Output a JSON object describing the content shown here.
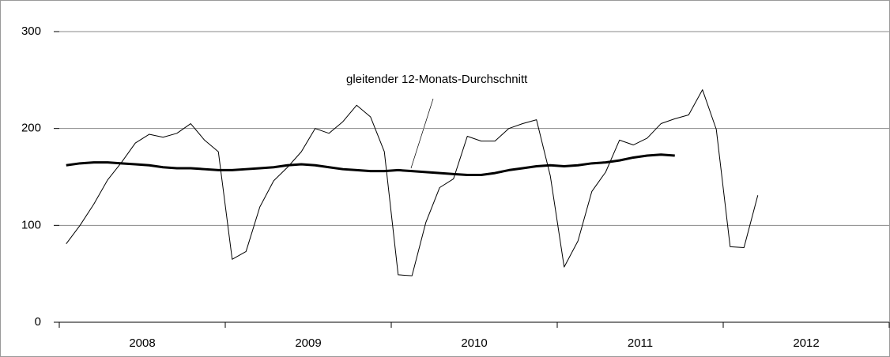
{
  "chart_data": {
    "type": "line",
    "annotation": "gleitender 12-Monats-Durchschnitt",
    "year_labels": [
      "2008",
      "2009",
      "2010",
      "2011",
      "2012"
    ],
    "ylim": [
      0,
      300
    ],
    "yticks": [
      0,
      100,
      200,
      300
    ],
    "grid": true,
    "series": [
      {
        "color": "#000000",
        "width": 1,
        "values": [
          81,
          100,
          122,
          147,
          165,
          185,
          194,
          191,
          195,
          205,
          188,
          176,
          65,
          73,
          119,
          146,
          160,
          176,
          200,
          195,
          207,
          224,
          212,
          176,
          49,
          48,
          103,
          139,
          148,
          192,
          187,
          187,
          200,
          205,
          209,
          151,
          57,
          84,
          135,
          155,
          188,
          183,
          190,
          205,
          210,
          214,
          240,
          199,
          78,
          77,
          131,
          null,
          null,
          null,
          null,
          null,
          null,
          null,
          null,
          null
        ]
      },
      {
        "color": "#000000",
        "width": 3,
        "values": [
          162,
          164,
          165,
          165,
          164,
          163,
          162,
          160,
          159,
          159,
          158,
          157,
          157,
          158,
          159,
          160,
          162,
          163,
          162,
          160,
          158,
          157,
          156,
          156,
          157,
          156,
          155,
          154,
          153,
          152,
          152,
          154,
          157,
          159,
          161,
          162,
          161,
          162,
          164,
          165,
          167,
          170,
          172,
          173,
          172,
          null,
          null,
          null,
          null,
          null,
          null,
          null,
          null,
          null,
          null,
          null,
          null,
          null,
          null,
          null
        ]
      }
    ]
  }
}
